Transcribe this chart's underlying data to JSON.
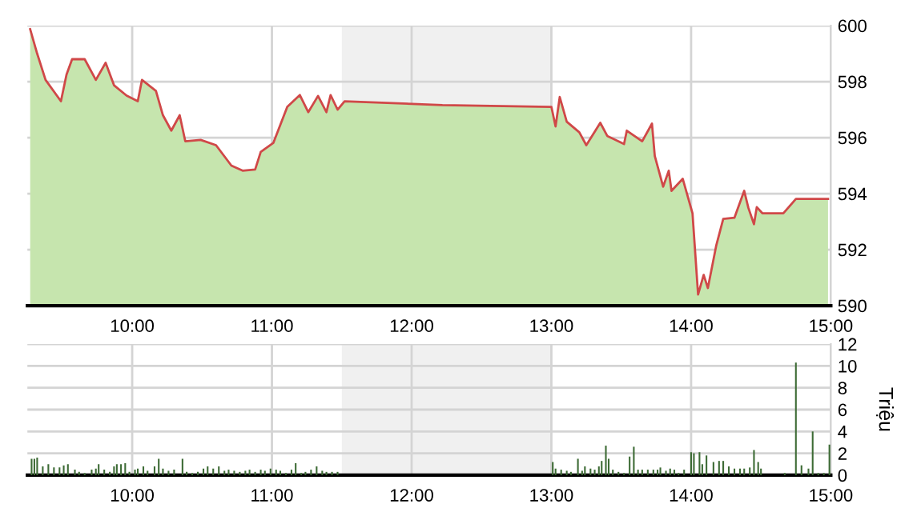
{
  "chart_data": [
    {
      "type": "area",
      "x": [
        9.27,
        9.32,
        9.38,
        9.49,
        9.53,
        9.57,
        9.66,
        9.74,
        9.81,
        9.87,
        9.96,
        10.04,
        10.07,
        10.17,
        10.22,
        10.28,
        10.34,
        10.38,
        10.49,
        10.6,
        10.71,
        10.79,
        10.88,
        10.92,
        11.01,
        11.11,
        11.2,
        11.26,
        11.33,
        11.39,
        11.42,
        11.47,
        11.52,
        12.22,
        13.0,
        13.03,
        13.06,
        13.11,
        13.2,
        13.25,
        13.35,
        13.4,
        13.52,
        13.54,
        13.65,
        13.72,
        13.74,
        13.8,
        13.84,
        13.86,
        13.94,
        14.01,
        14.05,
        14.09,
        14.12,
        14.18,
        14.23,
        14.31,
        14.38,
        14.41,
        14.45,
        14.47,
        14.51,
        14.66,
        14.75,
        14.98
      ],
      "series": [
        {
          "type": "area",
          "color": "#c6e5ae",
          "values": [
            599.87,
            599.0,
            598.06,
            597.3,
            598.25,
            598.8,
            598.8,
            598.06,
            598.67,
            597.87,
            597.5,
            597.3,
            598.06,
            597.67,
            596.8,
            596.25,
            596.8,
            595.87,
            595.92,
            595.73,
            595.0,
            594.82,
            594.86,
            595.49,
            595.81,
            597.1,
            597.52,
            596.91,
            597.49,
            596.91,
            597.52,
            597.0,
            597.3,
            597.16,
            597.1,
            596.4,
            597.45,
            596.57,
            596.19,
            595.73,
            596.53,
            596.06,
            595.77,
            596.25,
            595.87,
            596.5,
            595.35,
            594.25,
            594.82,
            594.1,
            594.53,
            593.3,
            590.4,
            591.1,
            590.63,
            592.15,
            593.1,
            593.14,
            594.1,
            593.49,
            592.91,
            593.52,
            593.3,
            593.3,
            593.81,
            593.81
          ]
        },
        {
          "type": "line",
          "color": "#d04848",
          "values": [
            599.87,
            599.0,
            598.06,
            597.3,
            598.25,
            598.8,
            598.8,
            598.06,
            598.67,
            597.87,
            597.5,
            597.3,
            598.06,
            597.67,
            596.8,
            596.25,
            596.8,
            595.87,
            595.92,
            595.73,
            595.0,
            594.82,
            594.86,
            595.49,
            595.81,
            597.1,
            597.52,
            596.91,
            597.49,
            596.91,
            597.52,
            597.0,
            597.3,
            597.16,
            597.1,
            596.4,
            597.45,
            596.57,
            596.19,
            595.73,
            596.53,
            596.06,
            595.77,
            596.25,
            595.87,
            596.5,
            595.35,
            594.25,
            594.82,
            594.1,
            594.53,
            593.3,
            590.4,
            591.1,
            590.63,
            592.15,
            593.1,
            593.14,
            594.1,
            593.49,
            592.91,
            593.52,
            593.3,
            593.3,
            593.81,
            593.81
          ]
        }
      ],
      "xlim": [
        9.25,
        15
      ],
      "xticks": [
        {
          "value": 10,
          "label": "10:00"
        },
        {
          "value": 11,
          "label": "11:00"
        },
        {
          "value": 12,
          "label": "12:00"
        },
        {
          "value": 13,
          "label": "13:00"
        },
        {
          "value": 14,
          "label": "14:00"
        },
        {
          "value": 15,
          "label": "15:00"
        }
      ],
      "ylim": [
        590,
        600
      ],
      "yticks": [
        590,
        592,
        594,
        596,
        598,
        600
      ],
      "grid": true,
      "bands": [
        {
          "axis": "x",
          "from": 11.5,
          "to": 13,
          "color": "#f0f0f0"
        }
      ]
    },
    {
      "type": "bar",
      "color": "#3d6b35",
      "ylabel": "Triệu",
      "x": [
        9.28,
        9.3,
        9.32,
        9.36,
        9.4,
        9.44,
        9.48,
        9.51,
        9.54,
        9.59,
        9.62,
        9.66,
        9.71,
        9.74,
        9.76,
        9.8,
        9.84,
        9.87,
        9.89,
        9.92,
        9.95,
        9.98,
        10.02,
        10.04,
        10.08,
        10.11,
        10.16,
        10.19,
        10.22,
        10.26,
        10.3,
        10.36,
        10.39,
        10.43,
        10.47,
        10.51,
        10.54,
        10.58,
        10.62,
        10.66,
        10.69,
        10.73,
        10.77,
        10.81,
        10.84,
        10.88,
        10.92,
        10.95,
        10.99,
        11.03,
        11.06,
        11.1,
        11.14,
        11.17,
        11.21,
        11.24,
        11.28,
        11.32,
        11.36,
        11.39,
        11.43,
        11.47,
        13.01,
        13.03,
        13.07,
        13.11,
        13.14,
        13.19,
        13.22,
        13.24,
        13.28,
        13.31,
        13.34,
        13.36,
        13.39,
        13.41,
        13.44,
        13.48,
        13.52,
        13.56,
        13.59,
        13.62,
        13.65,
        13.69,
        13.73,
        13.76,
        13.78,
        13.82,
        13.85,
        13.88,
        13.91,
        13.95,
        14.0,
        14.02,
        14.06,
        14.08,
        14.11,
        14.16,
        14.2,
        14.23,
        14.27,
        14.31,
        14.35,
        14.38,
        14.42,
        14.45,
        14.48,
        14.5,
        14.67,
        14.75,
        14.79,
        14.84,
        14.87,
        14.91,
        14.95,
        14.99
      ],
      "values": [
        1.5,
        1.5,
        1.6,
        0.8,
        1.0,
        0.7,
        0.7,
        0.9,
        1.0,
        0.5,
        0.3,
        0.2,
        0.5,
        0.6,
        1.0,
        0.5,
        0.3,
        0.8,
        1.0,
        1.0,
        1.1,
        0.3,
        0.5,
        0.6,
        0.8,
        0.4,
        0.8,
        1.5,
        0.6,
        0.4,
        0.5,
        1.5,
        0.3,
        0.2,
        0.3,
        0.6,
        0.8,
        0.6,
        0.8,
        0.4,
        0.5,
        0.4,
        0.3,
        0.4,
        0.5,
        0.3,
        0.5,
        0.4,
        0.6,
        0.5,
        0.4,
        0.2,
        0.5,
        1.1,
        0.2,
        0.3,
        0.5,
        0.8,
        0.4,
        0.3,
        0.3,
        0.3,
        1.2,
        0.6,
        0.5,
        0.4,
        0.3,
        1.5,
        0.4,
        0.8,
        0.6,
        0.5,
        0.8,
        1.3,
        2.7,
        1.5,
        0.5,
        0.3,
        0.2,
        1.7,
        2.6,
        0.5,
        0.5,
        0.5,
        0.5,
        0.5,
        0.7,
        0.4,
        0.6,
        0.5,
        0.2,
        0.5,
        2.1,
        2.0,
        2.1,
        1.0,
        1.8,
        1.2,
        1.3,
        1.3,
        0.8,
        0.6,
        0.6,
        0.6,
        0.7,
        2.3,
        1.2,
        0.6,
        0.2,
        10.3,
        0.9,
        0.6,
        4.0,
        0.2,
        0.2,
        2.8
      ],
      "xlim": [
        9.25,
        15
      ],
      "xticks": [
        {
          "value": 10,
          "label": "10:00"
        },
        {
          "value": 11,
          "label": "11:00"
        },
        {
          "value": 12,
          "label": "12:00"
        },
        {
          "value": 13,
          "label": "13:00"
        },
        {
          "value": 14,
          "label": "14:00"
        },
        {
          "value": 15,
          "label": "15:00"
        }
      ],
      "ylim": [
        0,
        12
      ],
      "yticks": [
        0,
        2,
        4,
        6,
        8,
        10,
        12
      ],
      "grid": true,
      "bands": [
        {
          "axis": "x",
          "from": 11.5,
          "to": 13,
          "color": "#f0f0f0"
        }
      ]
    }
  ]
}
